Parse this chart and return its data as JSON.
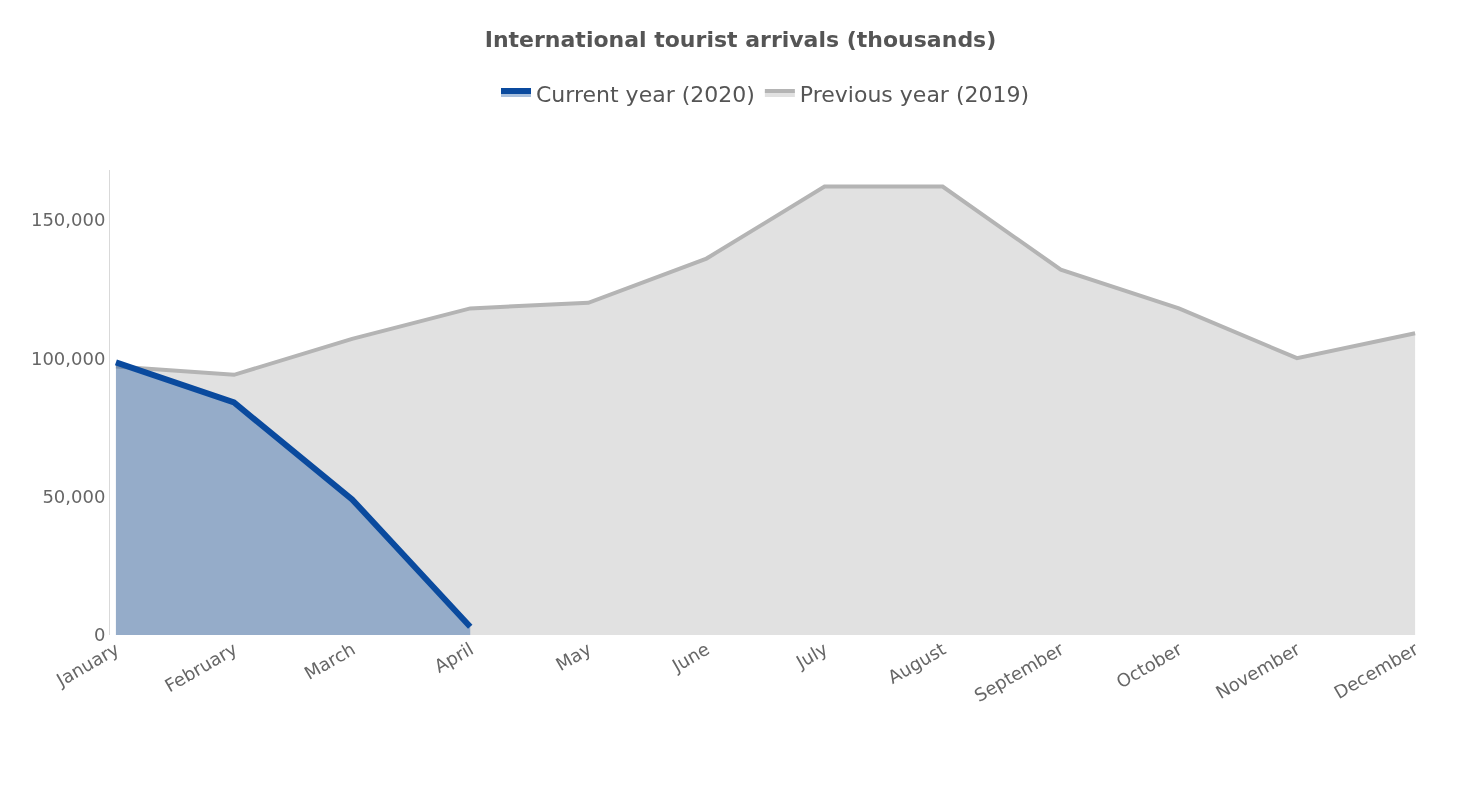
{
  "chart_data": {
    "type": "area",
    "title": "International tourist arrivals (thousands)",
    "categories": [
      "January",
      "February",
      "March",
      "April",
      "May",
      "June",
      "July",
      "August",
      "September",
      "October",
      "November",
      "December"
    ],
    "series": [
      {
        "name": "Current year (2020)",
        "color": "#0a4a9e",
        "values": [
          98500,
          84000,
          49000,
          3000,
          null,
          null,
          null,
          null,
          null,
          null,
          null,
          null
        ]
      },
      {
        "name": "Previous year (2019)",
        "color": "#b4b4b4",
        "values": [
          97000,
          94000,
          107000,
          118000,
          120000,
          136000,
          162000,
          162000,
          132000,
          118000,
          100000,
          109000
        ]
      }
    ],
    "ylim": [
      0,
      168000
    ],
    "yticks": [
      {
        "value": 0,
        "label": "0"
      },
      {
        "value": 50000,
        "label": "50,000"
      },
      {
        "value": 100000,
        "label": "100,000"
      },
      {
        "value": 150000,
        "label": "150,000"
      }
    ],
    "legend": "top",
    "line_style": "solid",
    "marker": "none"
  }
}
